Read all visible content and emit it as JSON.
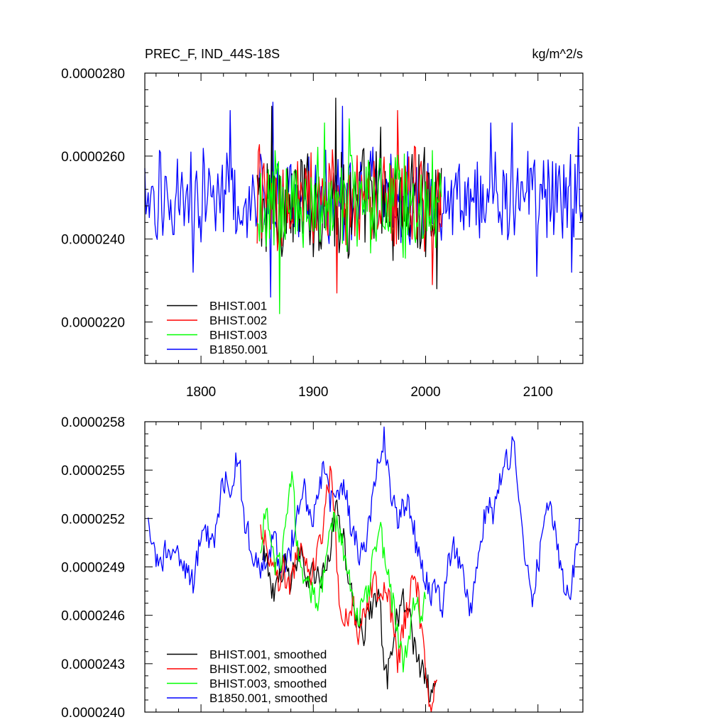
{
  "chart_data": [
    {
      "type": "line",
      "title": "PREC_F, IND_44S-18S",
      "units": "kg/m^2/s",
      "xlim": [
        1750,
        2140
      ],
      "ylim": [
        2.1e-05,
        2.8e-05
      ],
      "x_ticks": [
        1800,
        1900,
        2000,
        2100
      ],
      "x_tick_labels": [
        "1800",
        "1900",
        "2000",
        "2100"
      ],
      "y_ticks": [
        2.2e-05,
        2.4e-05,
        2.6e-05,
        2.8e-05
      ],
      "y_tick_labels": [
        "0.0000220",
        "0.0000240",
        "0.0000260",
        "0.0000280"
      ],
      "grid": false,
      "legend_position": "bottom-left",
      "series": [
        {
          "name": "BHIST.001",
          "color": "#000000",
          "x_start": 1850,
          "x_end": 2014,
          "mean": 2.485e-05,
          "amplitude": 1.1e-06,
          "peaks": [
            [
              1863,
              2.72e-05
            ],
            [
              1920,
              2.74e-05
            ],
            [
              1960,
              2.67e-05
            ]
          ],
          "troughs": [
            [
              1858,
              2.37e-05
            ],
            [
              2010,
              2.28e-05
            ]
          ]
        },
        {
          "name": "BHIST.002",
          "color": "#ff0000",
          "x_start": 1850,
          "x_end": 2014,
          "mean": 2.49e-05,
          "amplitude": 1.1e-06,
          "peaks": [
            [
              1851,
              2.61e-05
            ],
            [
              1975,
              2.71e-05
            ]
          ],
          "troughs": [
            [
              1921,
              2.27e-05
            ],
            [
              2006,
              2.29e-05
            ]
          ]
        },
        {
          "name": "BHIST.003",
          "color": "#00ff00",
          "x_start": 1850,
          "x_end": 2014,
          "mean": 2.49e-05,
          "amplitude": 1.1e-06,
          "peaks": [
            [
              1910,
              2.68e-05
            ],
            [
              1932,
              2.69e-05
            ]
          ],
          "troughs": [
            [
              1870,
              2.22e-05
            ],
            [
              1930,
              2.37e-05
            ]
          ]
        },
        {
          "name": "B1850.001",
          "color": "#0000ff",
          "x_start": 1750,
          "x_end": 2140,
          "mean": 2.5e-05,
          "amplitude": 9e-07,
          "peaks": [
            [
              1826,
              2.71e-05
            ],
            [
              1864,
              2.73e-05
            ],
            [
              1926,
              2.72e-05
            ],
            [
              2058,
              2.68e-05
            ],
            [
              2077,
              2.68e-05
            ],
            [
              2136,
              2.67e-05
            ]
          ],
          "troughs": [
            [
              1793,
              2.32e-05
            ],
            [
              1862,
              2.26e-05
            ],
            [
              2099,
              2.31e-05
            ],
            [
              2130,
              2.32e-05
            ]
          ]
        }
      ]
    },
    {
      "type": "line",
      "xlim": [
        1750,
        2140
      ],
      "ylim": [
        2.4e-05,
        2.58e-05
      ],
      "x_ticks": [
        1800,
        1900,
        2000,
        2100
      ],
      "y_ticks": [
        2.4e-05,
        2.43e-05,
        2.46e-05,
        2.49e-05,
        2.52e-05,
        2.55e-05,
        2.58e-05
      ],
      "y_tick_labels": [
        "0.0000240",
        "0.0000243",
        "0.0000246",
        "0.0000249",
        "0.0000252",
        "0.0000255",
        "0.0000258"
      ],
      "grid": false,
      "legend_position": "bottom-left",
      "series": [
        {
          "name": "BHIST.001, smoothed",
          "color": "#000000",
          "points": [
            [
              1855,
              2.5e-05
            ],
            [
              1860,
              2.49e-05
            ],
            [
              1865,
              2.47e-05
            ],
            [
              1870,
              2.48e-05
            ],
            [
              1875,
              2.49e-05
            ],
            [
              1880,
              2.48e-05
            ],
            [
              1885,
              2.49e-05
            ],
            [
              1890,
              2.5e-05
            ],
            [
              1895,
              2.48e-05
            ],
            [
              1900,
              2.49e-05
            ],
            [
              1905,
              2.48e-05
            ],
            [
              1910,
              2.49e-05
            ],
            [
              1915,
              2.5e-05
            ],
            [
              1920,
              2.53e-05
            ],
            [
              1923,
              2.52e-05
            ],
            [
              1926,
              2.51e-05
            ],
            [
              1930,
              2.49e-05
            ],
            [
              1935,
              2.47e-05
            ],
            [
              1940,
              2.45e-05
            ],
            [
              1945,
              2.45e-05
            ],
            [
              1950,
              2.46e-05
            ],
            [
              1955,
              2.47e-05
            ],
            [
              1958,
              2.48e-05
            ],
            [
              1962,
              2.44e-05
            ],
            [
              1966,
              2.42e-05
            ],
            [
              1970,
              2.44e-05
            ],
            [
              1975,
              2.46e-05
            ],
            [
              1980,
              2.47e-05
            ],
            [
              1985,
              2.46e-05
            ],
            [
              1990,
              2.44e-05
            ],
            [
              1995,
              2.43e-05
            ],
            [
              2000,
              2.42e-05
            ],
            [
              2005,
              2.41e-05
            ],
            [
              2010,
              2.42e-05
            ]
          ]
        },
        {
          "name": "BHIST.002, smoothed",
          "color": "#ff0000",
          "points": [
            [
              1853,
              2.52e-05
            ],
            [
              1858,
              2.5e-05
            ],
            [
              1863,
              2.49e-05
            ],
            [
              1868,
              2.48e-05
            ],
            [
              1873,
              2.49e-05
            ],
            [
              1878,
              2.48e-05
            ],
            [
              1883,
              2.49e-05
            ],
            [
              1888,
              2.5e-05
            ],
            [
              1893,
              2.49e-05
            ],
            [
              1898,
              2.48e-05
            ],
            [
              1903,
              2.5e-05
            ],
            [
              1908,
              2.51e-05
            ],
            [
              1913,
              2.54e-05
            ],
            [
              1916,
              2.55e-05
            ],
            [
              1919,
              2.52e-05
            ],
            [
              1922,
              2.48e-05
            ],
            [
              1926,
              2.45e-05
            ],
            [
              1930,
              2.46e-05
            ],
            [
              1935,
              2.47e-05
            ],
            [
              1940,
              2.45e-05
            ],
            [
              1945,
              2.46e-05
            ],
            [
              1950,
              2.47e-05
            ],
            [
              1955,
              2.48e-05
            ],
            [
              1960,
              2.47e-05
            ],
            [
              1965,
              2.48e-05
            ],
            [
              1970,
              2.46e-05
            ],
            [
              1975,
              2.43e-05
            ],
            [
              1980,
              2.45e-05
            ],
            [
              1985,
              2.47e-05
            ],
            [
              1990,
              2.49e-05
            ],
            [
              1995,
              2.46e-05
            ],
            [
              2000,
              2.43e-05
            ],
            [
              2005,
              2.4e-05
            ],
            [
              2010,
              2.42e-05
            ]
          ]
        },
        {
          "name": "BHIST.003, smoothed",
          "color": "#00ff00",
          "points": [
            [
              1853,
              2.5e-05
            ],
            [
              1858,
              2.53e-05
            ],
            [
              1863,
              2.5e-05
            ],
            [
              1868,
              2.49e-05
            ],
            [
              1873,
              2.5e-05
            ],
            [
              1878,
              2.54e-05
            ],
            [
              1881,
              2.55e-05
            ],
            [
              1885,
              2.51e-05
            ],
            [
              1890,
              2.49e-05
            ],
            [
              1895,
              2.48e-05
            ],
            [
              1900,
              2.47e-05
            ],
            [
              1905,
              2.47e-05
            ],
            [
              1910,
              2.49e-05
            ],
            [
              1915,
              2.51e-05
            ],
            [
              1920,
              2.52e-05
            ],
            [
              1925,
              2.51e-05
            ],
            [
              1930,
              2.49e-05
            ],
            [
              1935,
              2.47e-05
            ],
            [
              1940,
              2.46e-05
            ],
            [
              1945,
              2.47e-05
            ],
            [
              1950,
              2.48e-05
            ],
            [
              1955,
              2.5e-05
            ],
            [
              1960,
              2.51e-05
            ],
            [
              1965,
              2.49e-05
            ],
            [
              1970,
              2.47e-05
            ],
            [
              1975,
              2.45e-05
            ],
            [
              1980,
              2.43e-05
            ],
            [
              1985,
              2.45e-05
            ],
            [
              1990,
              2.47e-05
            ],
            [
              1995,
              2.46e-05
            ],
            [
              2000,
              2.47e-05
            ]
          ]
        },
        {
          "name": "B1850.001, smoothed",
          "color": "#0000ff",
          "points": [
            [
              1753,
              2.52e-05
            ],
            [
              1758,
              2.5e-05
            ],
            [
              1763,
              2.49e-05
            ],
            [
              1768,
              2.5e-05
            ],
            [
              1773,
              2.49e-05
            ],
            [
              1778,
              2.5e-05
            ],
            [
              1783,
              2.49e-05
            ],
            [
              1788,
              2.49e-05
            ],
            [
              1793,
              2.48e-05
            ],
            [
              1798,
              2.5e-05
            ],
            [
              1803,
              2.52e-05
            ],
            [
              1808,
              2.5e-05
            ],
            [
              1813,
              2.51e-05
            ],
            [
              1818,
              2.54e-05
            ],
            [
              1822,
              2.54e-05
            ],
            [
              1826,
              2.53e-05
            ],
            [
              1830,
              2.55e-05
            ],
            [
              1834,
              2.56e-05
            ],
            [
              1838,
              2.52e-05
            ],
            [
              1842,
              2.51e-05
            ],
            [
              1846,
              2.5e-05
            ],
            [
              1850,
              2.49e-05
            ],
            [
              1855,
              2.49e-05
            ],
            [
              1860,
              2.5e-05
            ],
            [
              1865,
              2.51e-05
            ],
            [
              1870,
              2.49e-05
            ],
            [
              1875,
              2.49e-05
            ],
            [
              1880,
              2.5e-05
            ],
            [
              1885,
              2.52e-05
            ],
            [
              1890,
              2.54e-05
            ],
            [
              1895,
              2.53e-05
            ],
            [
              1900,
              2.52e-05
            ],
            [
              1905,
              2.54e-05
            ],
            [
              1910,
              2.55e-05
            ],
            [
              1915,
              2.53e-05
            ],
            [
              1920,
              2.54e-05
            ],
            [
              1925,
              2.54e-05
            ],
            [
              1930,
              2.53e-05
            ],
            [
              1935,
              2.51e-05
            ],
            [
              1940,
              2.5e-05
            ],
            [
              1945,
              2.5e-05
            ],
            [
              1950,
              2.52e-05
            ],
            [
              1955,
              2.54e-05
            ],
            [
              1960,
              2.56e-05
            ],
            [
              1963,
              2.57e-05
            ],
            [
              1967,
              2.55e-05
            ],
            [
              1971,
              2.53e-05
            ],
            [
              1975,
              2.52e-05
            ],
            [
              1980,
              2.53e-05
            ],
            [
              1985,
              2.53e-05
            ],
            [
              1990,
              2.51e-05
            ],
            [
              1995,
              2.49e-05
            ],
            [
              2000,
              2.48e-05
            ],
            [
              2005,
              2.47e-05
            ],
            [
              2010,
              2.48e-05
            ],
            [
              2015,
              2.46e-05
            ],
            [
              2020,
              2.49e-05
            ],
            [
              2025,
              2.5e-05
            ],
            [
              2030,
              2.49e-05
            ],
            [
              2035,
              2.48e-05
            ],
            [
              2040,
              2.46e-05
            ],
            [
              2045,
              2.49e-05
            ],
            [
              2050,
              2.51e-05
            ],
            [
              2055,
              2.53e-05
            ],
            [
              2060,
              2.52e-05
            ],
            [
              2065,
              2.54e-05
            ],
            [
              2070,
              2.55e-05
            ],
            [
              2075,
              2.56e-05
            ],
            [
              2078,
              2.57e-05
            ],
            [
              2082,
              2.53e-05
            ],
            [
              2086,
              2.51e-05
            ],
            [
              2090,
              2.49e-05
            ],
            [
              2095,
              2.47e-05
            ],
            [
              2100,
              2.49e-05
            ],
            [
              2105,
              2.52e-05
            ],
            [
              2110,
              2.53e-05
            ],
            [
              2115,
              2.51e-05
            ],
            [
              2120,
              2.49e-05
            ],
            [
              2125,
              2.47e-05
            ],
            [
              2130,
              2.48e-05
            ],
            [
              2135,
              2.51e-05
            ],
            [
              2138,
              2.52e-05
            ]
          ]
        }
      ]
    }
  ]
}
